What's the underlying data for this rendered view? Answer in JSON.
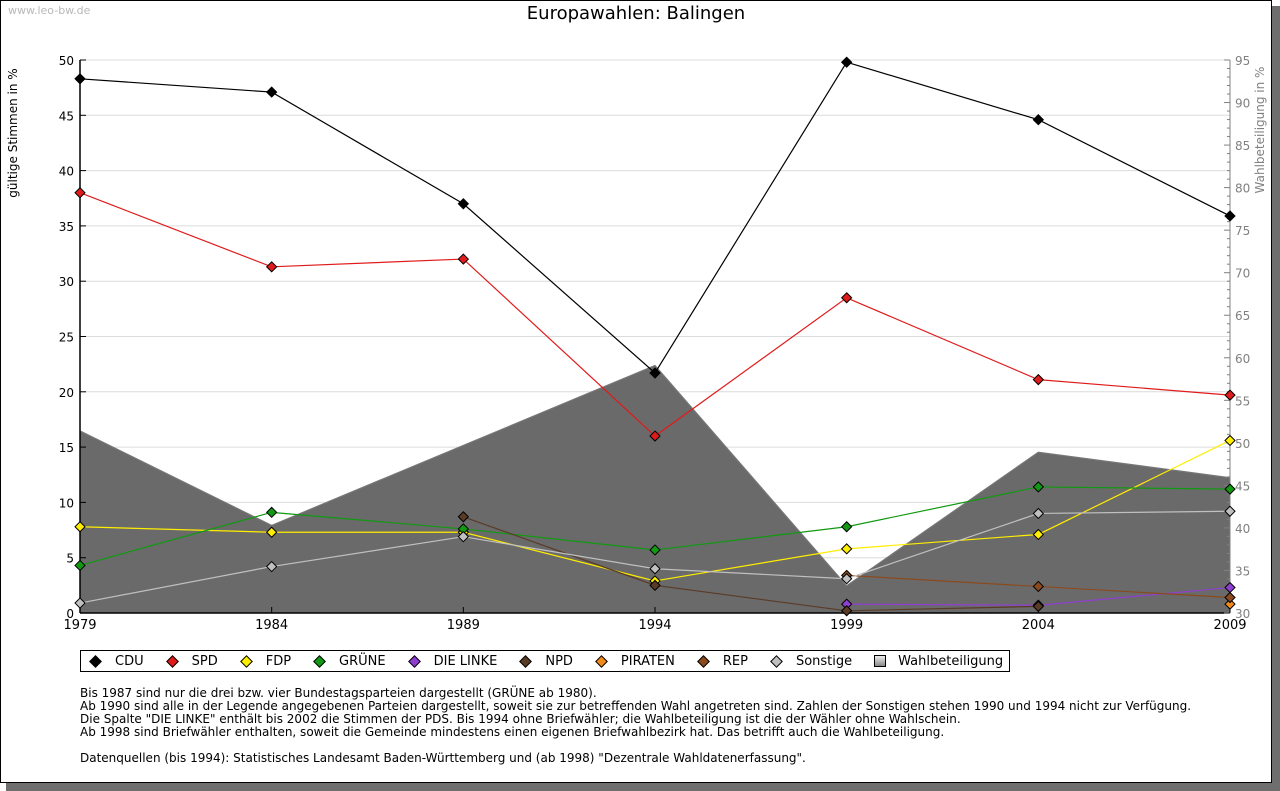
{
  "watermark": "www.leo-bw.de",
  "chart_data": {
    "type": "line",
    "title": "Europawahlen: Balingen",
    "xlabel": "",
    "ylabel": "gültige Stimmen in %",
    "y2label": "Wahlbeteiligung in %",
    "x": [
      1979,
      1984,
      1989,
      1994,
      1999,
      2004,
      2009
    ],
    "ylim": [
      0,
      50
    ],
    "y2lim": [
      30,
      95
    ],
    "yticks": [
      0,
      5,
      10,
      15,
      20,
      25,
      30,
      35,
      40,
      45,
      50
    ],
    "y2ticks": [
      30,
      35,
      40,
      45,
      50,
      55,
      60,
      65,
      70,
      75,
      80,
      85,
      90,
      95
    ],
    "grid": true,
    "legend_position": "bottom",
    "series": [
      {
        "name": "CDU",
        "color": "#000000",
        "values": [
          48.3,
          47.1,
          37.0,
          21.7,
          49.8,
          44.6,
          35.9
        ]
      },
      {
        "name": "SPD",
        "color": "#e01b1b",
        "values": [
          38.0,
          31.3,
          32.0,
          16.0,
          28.5,
          21.1,
          19.7
        ]
      },
      {
        "name": "FDP",
        "color": "#ffee00",
        "values": [
          7.8,
          7.3,
          7.3,
          2.9,
          5.8,
          7.1,
          15.6
        ]
      },
      {
        "name": "GRÜNE",
        "color": "#119911",
        "values": [
          4.3,
          9.1,
          7.6,
          5.7,
          7.8,
          11.4,
          11.2
        ]
      },
      {
        "name": "DIE LINKE",
        "color": "#8f3fcf",
        "values": [
          null,
          null,
          null,
          null,
          0.8,
          0.7,
          2.3
        ]
      },
      {
        "name": "NPD",
        "color": "#5a3b26",
        "values": [
          null,
          null,
          8.7,
          2.5,
          0.2,
          0.6,
          null
        ]
      },
      {
        "name": "PIRATEN",
        "color": "#f08a1c",
        "values": [
          null,
          null,
          null,
          null,
          null,
          null,
          0.8
        ]
      },
      {
        "name": "REP",
        "color": "#8b4a1e",
        "values": [
          null,
          null,
          null,
          null,
          3.4,
          2.4,
          1.4
        ]
      },
      {
        "name": "Sonstige",
        "color": "#c0c0c0",
        "values": [
          0.9,
          4.2,
          6.9,
          4.0,
          3.1,
          9.0,
          9.2
        ]
      }
    ],
    "turnout": {
      "name": "Wahlbeteiligung",
      "axis": "right",
      "type": "area",
      "values": [
        51.4,
        40.3,
        49.7,
        59.1,
        33.2,
        48.9,
        45.9
      ]
    }
  },
  "legend": [
    {
      "label": "CDU",
      "color": "#000000"
    },
    {
      "label": "SPD",
      "color": "#e01b1b"
    },
    {
      "label": "FDP",
      "color": "#ffee00"
    },
    {
      "label": "GRÜNE",
      "color": "#119911"
    },
    {
      "label": "DIE LINKE",
      "color": "#8f3fcf"
    },
    {
      "label": "NPD",
      "color": "#5a3b26"
    },
    {
      "label": "PIRATEN",
      "color": "#f08a1c"
    },
    {
      "label": "REP",
      "color": "#8b4a1e"
    },
    {
      "label": "Sonstige",
      "color": "#c0c0c0"
    },
    {
      "label": "Wahlbeteiligung",
      "color": "#aaaaaa"
    }
  ],
  "notes": [
    "Bis 1987 sind nur die drei bzw. vier Bundestagsparteien dargestellt (GRÜNE ab 1980).",
    "Ab 1990 sind alle in der Legende angegebenen Parteien dargestellt, soweit sie zur betreffenden Wahl angetreten sind. Zahlen der Sonstigen stehen 1990 und 1994 nicht zur Verfügung.",
    "Die Spalte \"DIE LINKE\" enthält bis 2002 die Stimmen der PDS. Bis 1994 ohne Briefwähler; die Wahlbeteiligung ist die der Wähler ohne Wahlschein.",
    "Ab 1998 sind Briefwähler enthalten, soweit die Gemeinde mindestens einen eigenen Briefwahlbezirk hat. Das betrifft auch die Wahlbeteiligung.",
    "Datenquellen (bis 1994): Statistisches Landesamt Baden-Württemberg und (ab 1998) \"Dezentrale Wahldatenerfassung\"."
  ]
}
